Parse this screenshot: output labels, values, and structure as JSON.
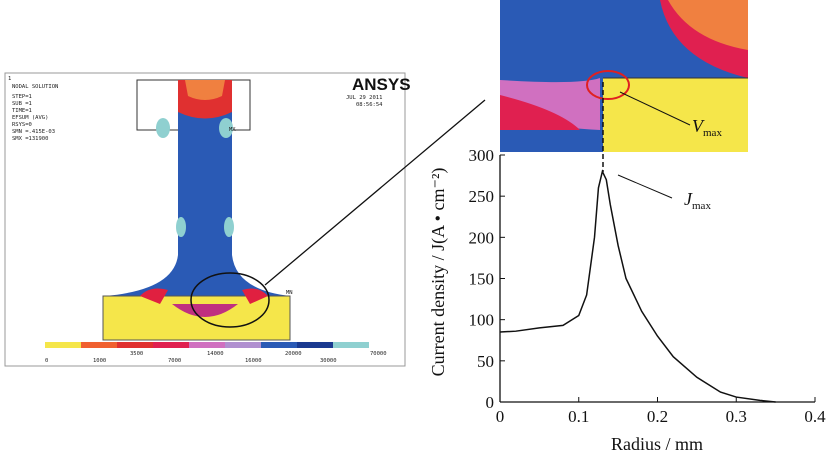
{
  "ansys": {
    "index": "1",
    "title": "NODAL SOLUTION",
    "info": [
      "STEP=1",
      "SUB =1",
      "TIME=1",
      "EFSUM    (AVG)",
      "RSYS=0",
      "SMN =.415E-03",
      "SMX =131900"
    ],
    "brand": "ANSYS",
    "date": "JUL 29 2011",
    "time": "08:56:54",
    "max_marker": "MX",
    "min_marker": "MN",
    "legend_top": [
      "3500",
      "14000",
      "20000",
      "70000"
    ],
    "legend_bottom": [
      "0",
      "1000",
      "7000",
      "16000",
      "30000"
    ]
  },
  "chart_data": {
    "type": "line",
    "ylabel": "Current density / J(A • cm⁻²)",
    "xlabel": "Radius / mm",
    "color": "#111111",
    "x": [
      0,
      0.02,
      0.05,
      0.08,
      0.1,
      0.11,
      0.12,
      0.125,
      0.13,
      0.135,
      0.14,
      0.15,
      0.16,
      0.18,
      0.2,
      0.22,
      0.25,
      0.28,
      0.3,
      0.33,
      0.35
    ],
    "values": [
      85,
      86,
      90,
      93,
      105,
      130,
      200,
      260,
      280,
      270,
      240,
      190,
      150,
      110,
      80,
      55,
      30,
      12,
      6,
      2,
      0
    ],
    "xlim": [
      0,
      0.4
    ],
    "xticks": [
      0,
      0.1,
      0.2,
      0.3,
      0.4
    ],
    "ylim": [
      0,
      300
    ],
    "yticks": [
      0,
      50,
      100,
      150,
      200,
      250,
      300
    ],
    "annotations": [
      {
        "symbol": "J",
        "sub": "max"
      },
      {
        "symbol": "V",
        "sub": "max"
      }
    ]
  }
}
